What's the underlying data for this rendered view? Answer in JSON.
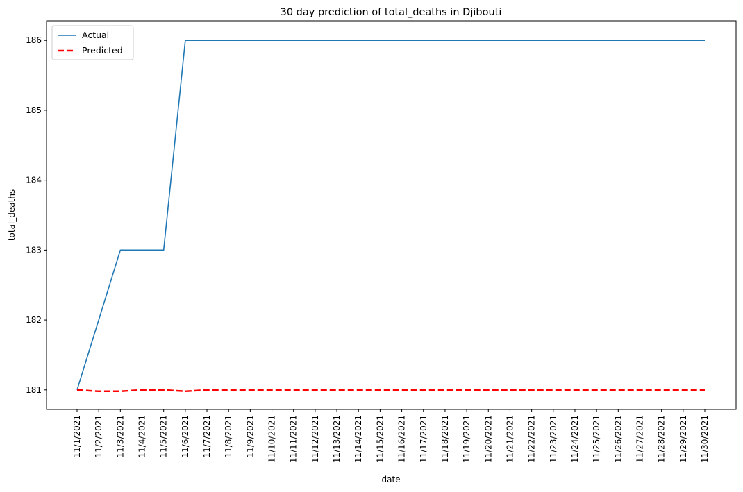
{
  "chart_data": {
    "type": "line",
    "title": "30 day prediction of total_deaths in Djibouti",
    "xlabel": "date",
    "ylabel": "total_deaths",
    "categories": [
      "11/1/2021",
      "11/2/2021",
      "11/3/2021",
      "11/4/2021",
      "11/5/2021",
      "11/6/2021",
      "11/7/2021",
      "11/8/2021",
      "11/9/2021",
      "11/10/2021",
      "11/11/2021",
      "11/12/2021",
      "11/13/2021",
      "11/14/2021",
      "11/15/2021",
      "11/16/2021",
      "11/17/2021",
      "11/18/2021",
      "11/19/2021",
      "11/20/2021",
      "11/21/2021",
      "11/22/2021",
      "11/23/2021",
      "11/24/2021",
      "11/25/2021",
      "11/26/2021",
      "11/27/2021",
      "11/28/2021",
      "11/29/2021",
      "11/30/2021"
    ],
    "yticks": [
      181,
      182,
      183,
      184,
      185,
      186
    ],
    "ylim": [
      180.72,
      186.28
    ],
    "grid": false,
    "legend_position": "top-left",
    "series": [
      {
        "name": "Actual",
        "color": "#1f77b4",
        "style": "solid",
        "values": [
          181,
          182,
          183,
          183,
          183,
          186,
          186,
          186,
          186,
          186,
          186,
          186,
          186,
          186,
          186,
          186,
          186,
          186,
          186,
          186,
          186,
          186,
          186,
          186,
          186,
          186,
          186,
          186,
          186,
          186
        ]
      },
      {
        "name": "Predicted",
        "color": "#ff0000",
        "style": "dashed",
        "values": [
          181,
          180.98,
          180.98,
          181,
          181,
          180.98,
          181,
          181,
          181,
          181,
          181,
          181,
          181,
          181,
          181,
          181,
          181,
          181,
          181,
          181,
          181,
          181,
          181,
          181,
          181,
          181,
          181,
          181,
          181,
          181
        ]
      }
    ]
  }
}
